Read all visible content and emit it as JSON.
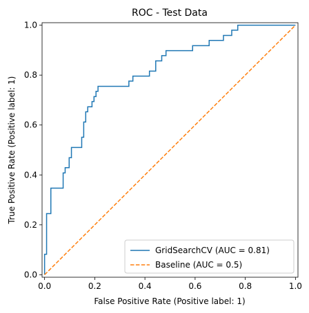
{
  "chart_data": {
    "type": "line",
    "title": "ROC - Test Data",
    "xlabel": "False Positive Rate (Positive label: 1)",
    "ylabel": "True Positive Rate (Positive label: 1)",
    "xlim": [
      -0.01,
      1.01
    ],
    "ylim": [
      -0.01,
      1.01
    ],
    "xticks": [
      "0.0",
      "0.2",
      "0.4",
      "0.6",
      "0.8",
      "1.0"
    ],
    "yticks": [
      "0.0",
      "0.2",
      "0.4",
      "0.6",
      "0.8",
      "1.0"
    ],
    "grid": false,
    "legend_position": "lower-right",
    "series": [
      {
        "name": "GridSearchCV (AUC = 0.81)",
        "color": "#1f77b4",
        "style": "solid",
        "x": [
          0.0,
          0.0,
          0.008,
          0.008,
          0.016,
          0.016,
          0.025,
          0.025,
          0.074,
          0.074,
          0.082,
          0.082,
          0.098,
          0.098,
          0.107,
          0.107,
          0.115,
          0.115,
          0.148,
          0.148,
          0.156,
          0.156,
          0.164,
          0.164,
          0.172,
          0.172,
          0.189,
          0.189,
          0.197,
          0.197,
          0.205,
          0.205,
          0.213,
          0.213,
          0.336,
          0.336,
          0.352,
          0.352,
          0.418,
          0.418,
          0.443,
          0.443,
          0.467,
          0.467,
          0.484,
          0.484,
          0.5,
          0.5,
          0.59,
          0.59,
          0.656,
          0.656,
          0.713,
          0.713,
          0.746,
          0.746,
          0.77,
          0.77,
          1.0
        ],
        "y": [
          0.0,
          0.082,
          0.082,
          0.245,
          0.245,
          0.245,
          0.245,
          0.347,
          0.347,
          0.408,
          0.408,
          0.429,
          0.429,
          0.469,
          0.469,
          0.51,
          0.51,
          0.51,
          0.51,
          0.551,
          0.551,
          0.612,
          0.612,
          0.653,
          0.653,
          0.673,
          0.673,
          0.694,
          0.694,
          0.714,
          0.714,
          0.735,
          0.735,
          0.755,
          0.755,
          0.776,
          0.776,
          0.796,
          0.796,
          0.816,
          0.816,
          0.857,
          0.857,
          0.878,
          0.878,
          0.898,
          0.898,
          0.898,
          0.898,
          0.918,
          0.918,
          0.939,
          0.939,
          0.959,
          0.959,
          0.98,
          0.98,
          1.0,
          1.0
        ]
      },
      {
        "name": "Baseline (AUC = 0.5)",
        "color": "#ff7f0e",
        "style": "dashed",
        "x": [
          0.0,
          1.0
        ],
        "y": [
          0.0,
          1.0
        ]
      }
    ]
  }
}
